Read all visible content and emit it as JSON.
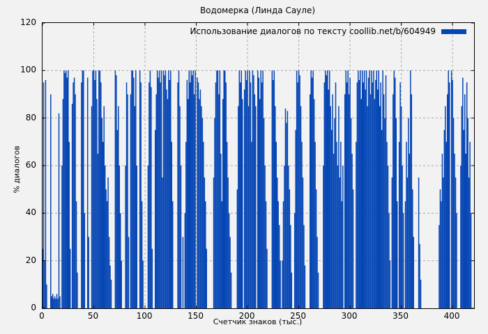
{
  "chart_data": {
    "type": "bar",
    "title": "Водомерка (Линда Сауле)",
    "legend": "Использование диалогов по тексту coollib.net/b/604949",
    "legend_position": "top-right",
    "xlabel": "Счетчик знаков (тыс.)",
    "ylabel": "% диалогов",
    "xlim": [
      0,
      421
    ],
    "ylim": [
      0,
      120
    ],
    "x_ticks": [
      0,
      50,
      100,
      150,
      200,
      250,
      300,
      350,
      400
    ],
    "y_ticks": [
      0,
      20,
      40,
      60,
      80,
      100,
      120
    ],
    "grid": true,
    "bar_color": "#0646b4",
    "grid_color": "#a8a8a8",
    "background": "#f2f2f2",
    "x_start": 0,
    "x_step": 1,
    "values": [
      25,
      95,
      20,
      96,
      10,
      0,
      0,
      0,
      90,
      5,
      6,
      4,
      5,
      4,
      6,
      4,
      82,
      5,
      0,
      60,
      88,
      100,
      99,
      100,
      97,
      100,
      70,
      25,
      0,
      86,
      95,
      97,
      90,
      45,
      15,
      0,
      0,
      0,
      95,
      100,
      100,
      40,
      0,
      0,
      97,
      30,
      0,
      0,
      85,
      100,
      100,
      96,
      100,
      88,
      65,
      100,
      100,
      95,
      80,
      70,
      85,
      60,
      50,
      45,
      55,
      30,
      18,
      12,
      0,
      0,
      0,
      100,
      98,
      75,
      85,
      60,
      40,
      20,
      0,
      0,
      0,
      60,
      95,
      90,
      30,
      0,
      90,
      100,
      100,
      97,
      85,
      100,
      60,
      0,
      0,
      100,
      95,
      45,
      20,
      0,
      0,
      0,
      0,
      60,
      95,
      100,
      93,
      25,
      0,
      0,
      75,
      90,
      100,
      97,
      100,
      95,
      100,
      55,
      100,
      98,
      100,
      92,
      88,
      100,
      96,
      100,
      70,
      45,
      0,
      0,
      0,
      0,
      95,
      100,
      85,
      60,
      0,
      30,
      0,
      40,
      70,
      96,
      88,
      100,
      95,
      100,
      98,
      100,
      90,
      100,
      0,
      97,
      95,
      88,
      92,
      85,
      80,
      70,
      55,
      45,
      25,
      0,
      0,
      0,
      0,
      0,
      0,
      55,
      80,
      95,
      100,
      100,
      90,
      100,
      65,
      45,
      88,
      100,
      100,
      95,
      70,
      55,
      40,
      30,
      15,
      0,
      0,
      0,
      0,
      0,
      50,
      85,
      100,
      95,
      100,
      88,
      0,
      92,
      100,
      96,
      100,
      85,
      100,
      95,
      70,
      100,
      98,
      90,
      85,
      0,
      100,
      97,
      88,
      100,
      95,
      100,
      80,
      60,
      45,
      25,
      0,
      0,
      0,
      0,
      100,
      96,
      100,
      85,
      70,
      55,
      45,
      35,
      20,
      0,
      20,
      45,
      60,
      84,
      78,
      83,
      60,
      50,
      35,
      15,
      0,
      0,
      40,
      75,
      100,
      95,
      100,
      98,
      85,
      70,
      55,
      35,
      18,
      0,
      0,
      0,
      0,
      90,
      100,
      97,
      100,
      88,
      70,
      50,
      30,
      15,
      0,
      0,
      0,
      0,
      60,
      95,
      100,
      98,
      100,
      92,
      100,
      85,
      75,
      90,
      65,
      80,
      95,
      70,
      60,
      85,
      55,
      70,
      45,
      60,
      0,
      90,
      100,
      95,
      100,
      90,
      97,
      80,
      65,
      50,
      0,
      0,
      70,
      95,
      100,
      96,
      100,
      88,
      100,
      95,
      100,
      92,
      100,
      85,
      97,
      100,
      90,
      100,
      95,
      100,
      88,
      96,
      100,
      92,
      100,
      85,
      95,
      75,
      100,
      90,
      80,
      98,
      70,
      60,
      40,
      20,
      0,
      55,
      90,
      100,
      97,
      80,
      45,
      0,
      70,
      95,
      85,
      60,
      40,
      0,
      45,
      70,
      55,
      80,
      65,
      100,
      90,
      50,
      30,
      0,
      0,
      0,
      0,
      55,
      27,
      12,
      0,
      0,
      0,
      0,
      0,
      0,
      0,
      0,
      0,
      0,
      0,
      0,
      0,
      0,
      0,
      0,
      0,
      35,
      50,
      45,
      65,
      55,
      75,
      85,
      70,
      90,
      100,
      95,
      0,
      100,
      96,
      80,
      65,
      55,
      40,
      0,
      0,
      0,
      60,
      85,
      97,
      75,
      90,
      65,
      95,
      80,
      55,
      70,
      40
    ]
  }
}
